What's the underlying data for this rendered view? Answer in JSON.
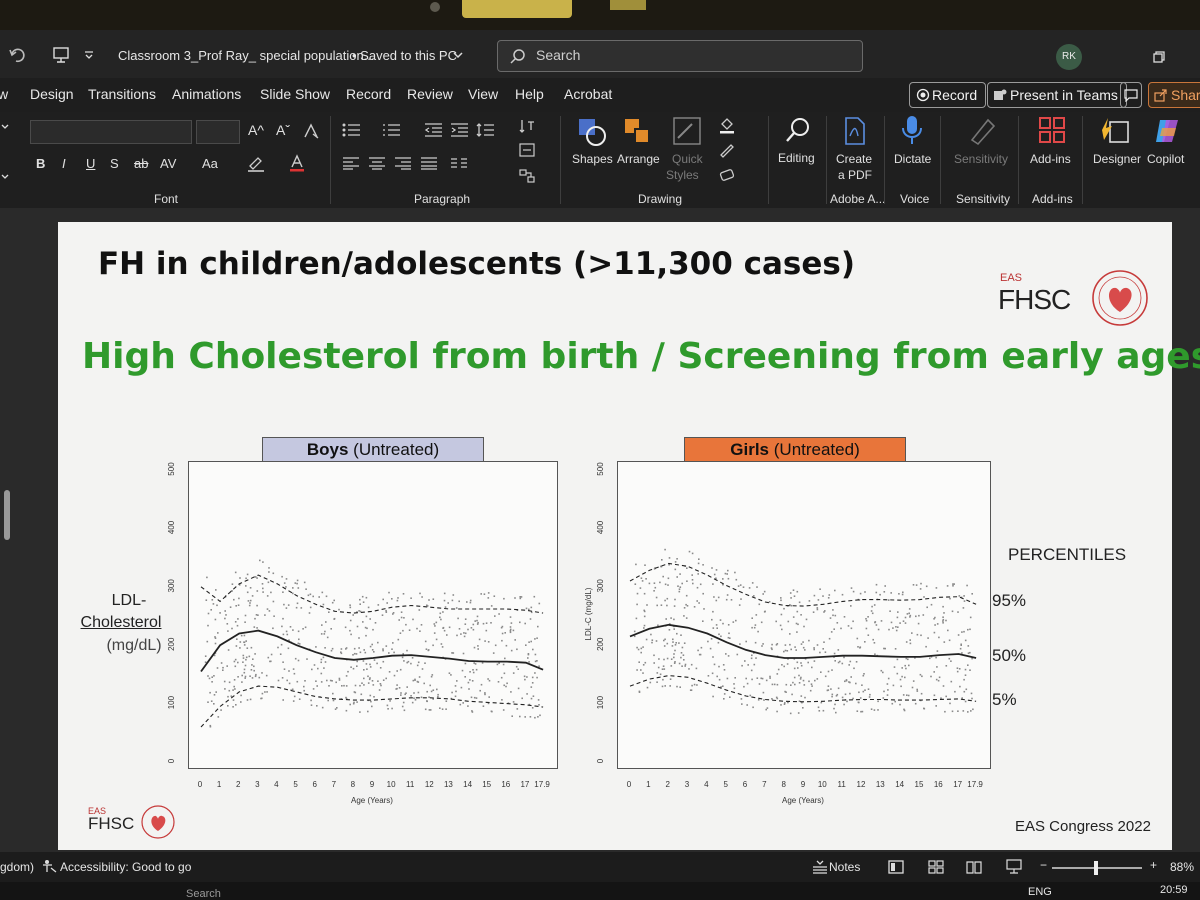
{
  "window": {
    "doc_title": "Classroom 3_Prof Ray_ special population...",
    "save_status": "• Saved to this PC",
    "search_placeholder": "Search",
    "user_initials": "RK"
  },
  "menu": {
    "items": [
      "Design",
      "Transitions",
      "Animations",
      "Slide Show",
      "Record",
      "Review",
      "View",
      "Help",
      "Acrobat"
    ],
    "left_fragment": "w",
    "record_label": "Record",
    "present_label": "Present in Teams",
    "share_label": "Share"
  },
  "ribbon": {
    "groups": {
      "font": "Font",
      "paragraph": "Paragraph",
      "drawing": "Drawing",
      "adobe": "Adobe A...",
      "voice": "Voice",
      "sensitivity": "Sensitivity",
      "addins": "Add-ins"
    },
    "buttons": {
      "shapes": "Shapes",
      "arrange": "Arrange",
      "quick_styles_1": "Quick",
      "quick_styles_2": "Styles",
      "editing": "Editing",
      "create_pdf_1": "Create",
      "create_pdf_2": "a PDF",
      "dictate": "Dictate",
      "sensitivity": "Sensitivity",
      "addins": "Add-ins",
      "designer": "Designer",
      "copilot": "Copilot"
    },
    "font_tools": {
      "grow": "A^",
      "shrink": "Aˇ",
      "bold": "B",
      "italic": "I",
      "underline": "U",
      "shadow": "S",
      "strike": "ab",
      "spacing": "AV",
      "case": "Aa"
    }
  },
  "slide": {
    "title": "FH in children/adolescents (>11,300 cases)",
    "subtitle": "High Cholesterol from birth / Screening from early ages",
    "logo_small": "EAS",
    "logo_big": "FHSC",
    "footer_logo_small": "EAS",
    "footer_logo_big": "FHSC",
    "footer_right": "EAS Congress 2022",
    "boys_label_bold": "Boys",
    "boys_label_rest": "(Untreated)",
    "girls_label_bold": "Girls",
    "girls_label_rest": "(Untreated)",
    "y_label_1": "LDL-",
    "y_label_2": "Cholesterol",
    "y_label_3": "(mg/dL)",
    "girls_y_axis": "LDL-C (mg/dL)",
    "percentiles_heading": "PERCENTILES",
    "p95": "95%",
    "p50": "50%",
    "p5": "5%",
    "boys_color": "#c5c8e0",
    "girls_color": "#e8753a"
  },
  "chart_data": [
    {
      "type": "scatter",
      "title": "Boys (Untreated)",
      "xlabel": "Age (Years)",
      "ylabel": "",
      "xlim": [
        0,
        18
      ],
      "ylim": [
        0,
        500
      ],
      "x_ticks": [
        "0",
        "1",
        "2",
        "3",
        "4",
        "5",
        "6",
        "7",
        "8",
        "9",
        "10",
        "11",
        "12",
        "13",
        "14",
        "15",
        "16",
        "17",
        "17.9"
      ],
      "y_ticks": [
        "0",
        "100",
        "200",
        "300",
        "400",
        "500"
      ],
      "percentile_curves": [
        {
          "name": "95%",
          "x": [
            0,
            1,
            2,
            3,
            4,
            5,
            6,
            7,
            8,
            9,
            10,
            11,
            12,
            13,
            14,
            15,
            16,
            17,
            17.9
          ],
          "y": [
            300,
            275,
            305,
            320,
            305,
            285,
            270,
            258,
            255,
            258,
            265,
            268,
            265,
            262,
            262,
            262,
            262,
            260,
            255
          ]
        },
        {
          "name": "50%",
          "x": [
            0,
            1,
            2,
            3,
            4,
            5,
            6,
            7,
            8,
            9,
            10,
            11,
            12,
            13,
            14,
            15,
            16,
            17,
            17.9
          ],
          "y": [
            155,
            200,
            220,
            225,
            215,
            200,
            188,
            178,
            175,
            178,
            182,
            183,
            180,
            177,
            173,
            172,
            172,
            170,
            158
          ]
        },
        {
          "name": "5%",
          "x": [
            0,
            1,
            2,
            3,
            4,
            5,
            6,
            7,
            8,
            9,
            10,
            11,
            12,
            13,
            14,
            15,
            16,
            17,
            17.9
          ],
          "y": [
            60,
            95,
            120,
            130,
            128,
            120,
            112,
            108,
            106,
            106,
            108,
            110,
            110,
            108,
            104,
            102,
            100,
            98,
            94
          ]
        }
      ]
    },
    {
      "type": "scatter",
      "title": "Girls (Untreated)",
      "xlabel": "Age (Years)",
      "ylabel": "LDL-C (mg/dL)",
      "xlim": [
        0,
        18
      ],
      "ylim": [
        0,
        500
      ],
      "x_ticks": [
        "0",
        "1",
        "2",
        "3",
        "4",
        "5",
        "6",
        "7",
        "8",
        "9",
        "10",
        "11",
        "12",
        "13",
        "14",
        "15",
        "16",
        "17",
        "17.9"
      ],
      "y_ticks": [
        "0",
        "100",
        "200",
        "300",
        "400",
        "500"
      ],
      "percentile_curves": [
        {
          "name": "95%",
          "x": [
            0,
            1,
            2,
            3,
            4,
            5,
            6,
            7,
            8,
            9,
            10,
            11,
            12,
            13,
            14,
            15,
            16,
            17,
            17.9
          ],
          "y": [
            310,
            328,
            340,
            335,
            320,
            302,
            287,
            274,
            268,
            267,
            270,
            275,
            278,
            278,
            277,
            278,
            282,
            283,
            270
          ]
        },
        {
          "name": "50%",
          "x": [
            0,
            1,
            2,
            3,
            4,
            5,
            6,
            7,
            8,
            9,
            10,
            11,
            12,
            13,
            14,
            15,
            16,
            17,
            17.9
          ],
          "y": [
            215,
            228,
            235,
            230,
            220,
            205,
            192,
            183,
            178,
            178,
            180,
            182,
            182,
            181,
            180,
            180,
            183,
            185,
            178
          ]
        },
        {
          "name": "5%",
          "x": [
            0,
            1,
            2,
            3,
            4,
            5,
            6,
            7,
            8,
            9,
            10,
            11,
            12,
            13,
            14,
            15,
            16,
            17,
            17.9
          ],
          "y": [
            130,
            142,
            148,
            145,
            135,
            123,
            113,
            107,
            104,
            103,
            104,
            106,
            107,
            107,
            106,
            106,
            107,
            108,
            104
          ]
        }
      ]
    }
  ],
  "statusbar": {
    "left_fragment": "gdom)",
    "accessibility": "Accessibility: Good to go",
    "notes": "Notes",
    "zoom": "88%",
    "lang": "ENG",
    "time": "20:59",
    "search_fragment": "Search"
  }
}
